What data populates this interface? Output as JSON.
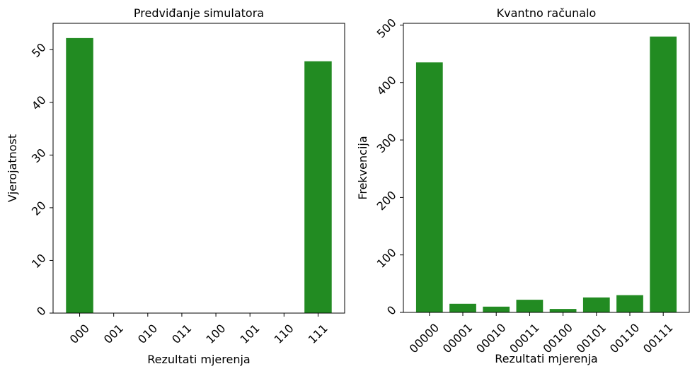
{
  "chart_data": [
    {
      "type": "bar",
      "title": "Predviđanje simulatora",
      "x_label": "Rezultati mjerenja",
      "y_label": "Vjerojatnost",
      "categories": [
        "000",
        "001",
        "010",
        "011",
        "100",
        "101",
        "110",
        "111"
      ],
      "values": [
        52.2,
        0,
        0,
        0,
        0,
        0,
        0,
        47.8
      ],
      "color": "#228b22",
      "ylim": [
        0,
        55
      ],
      "yticks": [
        0,
        10,
        20,
        30,
        40,
        50
      ]
    },
    {
      "type": "bar",
      "title": "Kvantno računalo",
      "x_label": "Rezultati mjerenja",
      "y_label": "Frekvencija",
      "categories": [
        "00000",
        "00001",
        "00010",
        "00011",
        "00100",
        "00101",
        "00110",
        "00111"
      ],
      "values": [
        435,
        15,
        10,
        22,
        6,
        26,
        30,
        480
      ],
      "color": "#228b22",
      "ylim": [
        0,
        503
      ],
      "yticks": [
        0,
        100,
        200,
        300,
        400,
        500
      ]
    }
  ]
}
